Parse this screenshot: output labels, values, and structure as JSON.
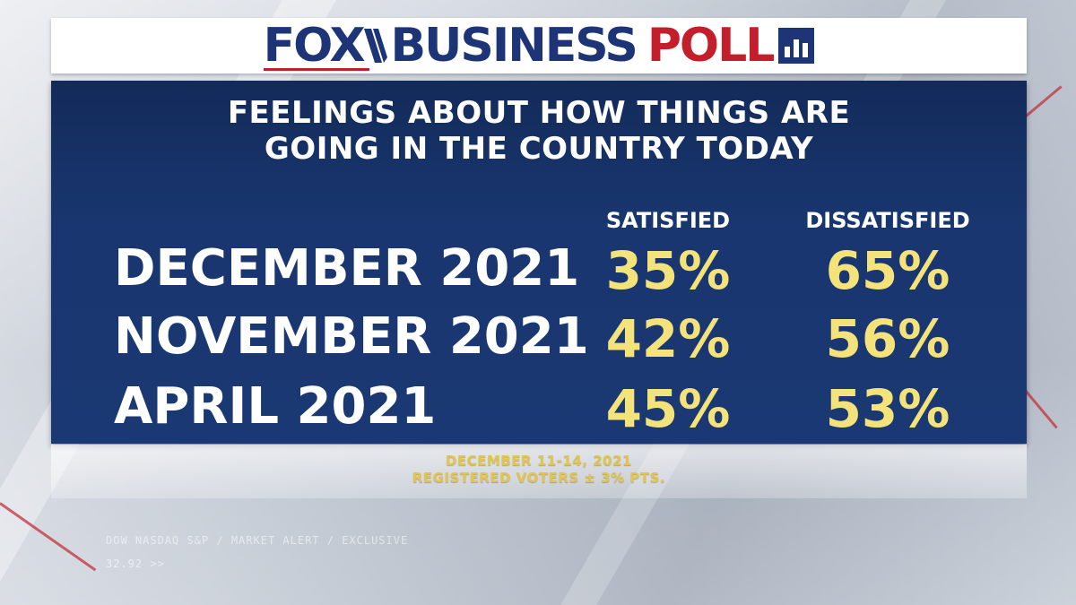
{
  "header": {
    "brand_fox": "FOX",
    "brand_business": "BUSINESS",
    "brand_poll": "POLL"
  },
  "chart_data": {
    "type": "table",
    "title": "FEELINGS ABOUT HOW THINGS ARE GOING IN THE COUNTRY TODAY",
    "title_lines": [
      "FEELINGS ABOUT HOW THINGS ARE",
      "GOING IN THE COUNTRY TODAY"
    ],
    "columns": [
      "SATISFIED",
      "DISSATISFIED"
    ],
    "rows": [
      {
        "label": "DECEMBER 2021",
        "values": [
          "35%",
          "65%"
        ]
      },
      {
        "label": "NOVEMBER 2021",
        "values": [
          "42%",
          "56%"
        ]
      },
      {
        "label": "APRIL 2021",
        "values": [
          "45%",
          "53%"
        ]
      }
    ],
    "series": [
      {
        "name": "SATISFIED",
        "values": [
          35,
          42,
          45
        ]
      },
      {
        "name": "DISSATISFIED",
        "values": [
          65,
          56,
          53
        ]
      }
    ],
    "categories": [
      "DECEMBER 2021",
      "NOVEMBER 2021",
      "APRIL 2021"
    ]
  },
  "footnote": {
    "dates": "DECEMBER 11-14, 2021",
    "sample": "REGISTERED VOTERS ± 3% PTS."
  },
  "background_ticker": {
    "line1": "DOW NASDAQ S&P  /  MARKET ALERT  /  EXCLUSIVE",
    "line2": "32.92 >>"
  },
  "colors": {
    "fox_blue": "#1d3577",
    "poll_red": "#c41e2d",
    "panel_blue": "#1a3a72",
    "value_yellow": "#f4e27a",
    "footnote_gold": "#e3c548"
  },
  "icons": [
    "bar-chart-icon"
  ]
}
